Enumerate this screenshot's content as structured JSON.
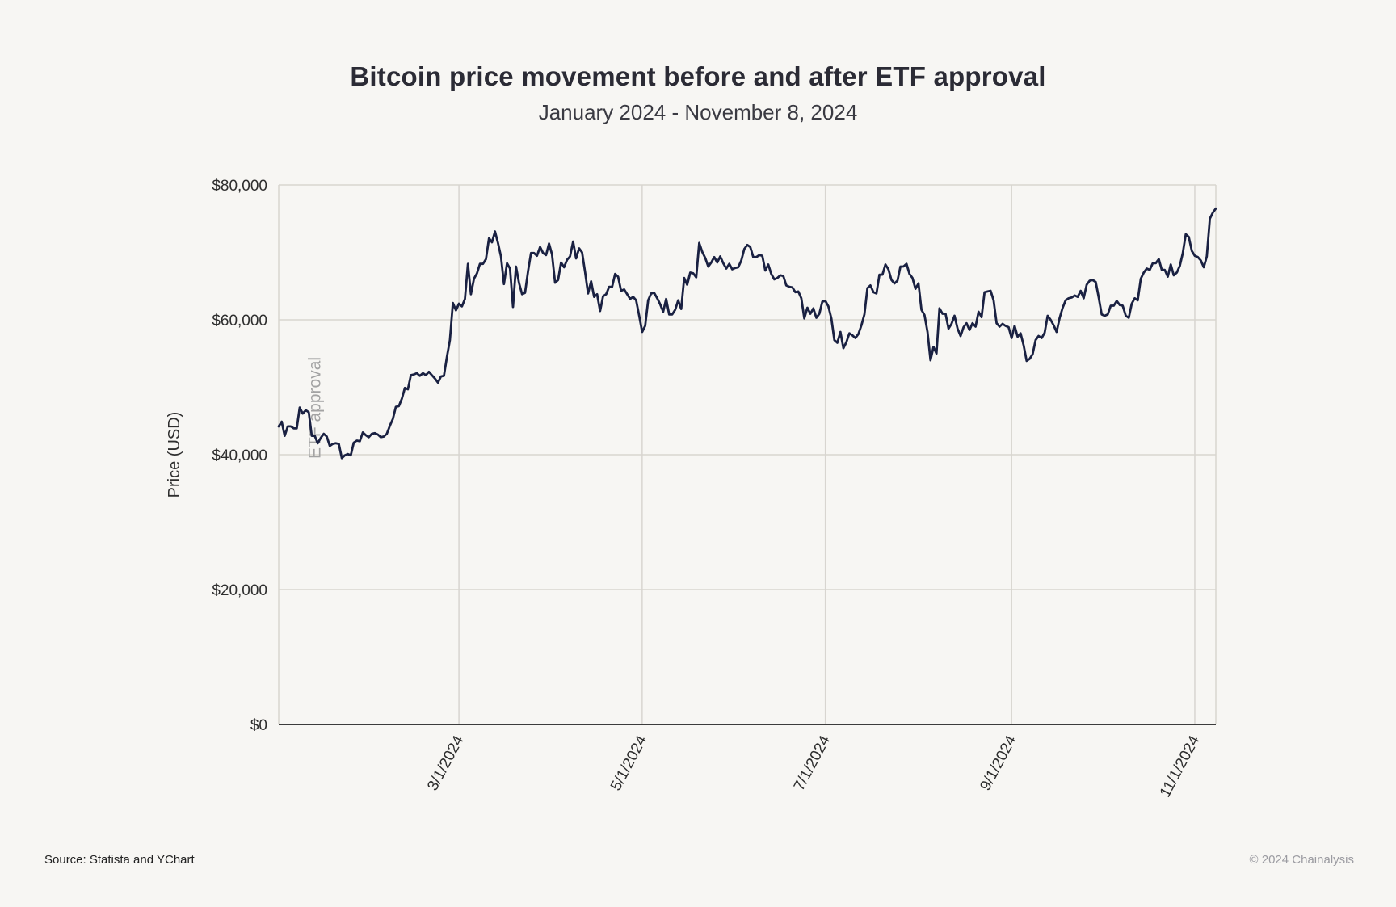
{
  "page": {
    "title": "Bitcoin price movement before and after ETF approval",
    "subtitle": "January 2024 - November 8, 2024",
    "source": "Source: Statista and YChart",
    "copyright": "© 2024 Chainalysis"
  },
  "colors": {
    "background": "#f7f6f3",
    "line": "#1a2142",
    "grid": "#d8d5d0",
    "axis": "#3c3c3c",
    "tick_text": "#2e2e2e",
    "annotation_text": "#a3a3a3"
  },
  "chart_data": {
    "type": "line",
    "title": "Bitcoin price movement before and after ETF approval",
    "subtitle": "January 2024 - November 8, 2024",
    "xlabel": "",
    "ylabel": "Price (USD)",
    "ylim": [
      0,
      80000
    ],
    "y_ticks": [
      0,
      20000,
      40000,
      60000,
      80000
    ],
    "y_tick_prefix": "$",
    "grid": true,
    "legend": false,
    "start_date": "2024-01-01",
    "end_date": "2024-11-08",
    "frequency": "daily",
    "x_ticks": [
      {
        "label": "3/1/2024",
        "day_index": 60
      },
      {
        "label": "5/1/2024",
        "day_index": 121
      },
      {
        "label": "7/1/2024",
        "day_index": 182
      },
      {
        "label": "9/1/2024",
        "day_index": 244
      },
      {
        "label": "11/1/2024",
        "day_index": 305
      }
    ],
    "annotation": {
      "text": "ETF approval",
      "date": "2024-01-10",
      "day_index": 9
    },
    "series": [
      {
        "name": "Bitcoin price (USD)",
        "values": [
          44200,
          44900,
          42800,
          44200,
          44200,
          43900,
          43900,
          47000,
          46100,
          46600,
          46300,
          42800,
          42800,
          41700,
          42500,
          43100,
          42700,
          41300,
          41600,
          41700,
          41600,
          39500,
          39900,
          40100,
          39900,
          41800,
          42100,
          42000,
          43300,
          42900,
          42600,
          43100,
          43200,
          43000,
          42600,
          42700,
          43100,
          44300,
          45300,
          47100,
          47200,
          48300,
          49900,
          49700,
          51800,
          51900,
          52100,
          51700,
          52100,
          51800,
          52300,
          51800,
          51300,
          50700,
          51600,
          51700,
          54500,
          57000,
          62500,
          61400,
          62400,
          62000,
          63100,
          68300,
          63800,
          66100,
          66900,
          68300,
          68300,
          69000,
          72100,
          71500,
          73100,
          71400,
          69400,
          65300,
          68400,
          67600,
          61900,
          67900,
          65500,
          63800,
          64000,
          67200,
          69900,
          69900,
          69500,
          70800,
          69900,
          69600,
          71300,
          69700,
          65500,
          65900,
          68500,
          67800,
          68900,
          69400,
          71600,
          69100,
          70600,
          70000,
          67100,
          63900,
          65700,
          63400,
          63800,
          61300,
          63500,
          63800,
          64900,
          64900,
          66800,
          66400,
          64300,
          64500,
          63800,
          63100,
          63400,
          62900,
          60600,
          58200,
          59100,
          62900,
          63900,
          64000,
          63200,
          62300,
          61200,
          63100,
          60800,
          60800,
          61500,
          62900,
          61600,
          66200,
          65200,
          67000,
          66900,
          66300,
          71400,
          70100,
          69200,
          67900,
          68500,
          69300,
          68500,
          69400,
          68400,
          67600,
          68300,
          67500,
          67700,
          67800,
          68800,
          70500,
          71100,
          70800,
          69300,
          69300,
          69600,
          69500,
          67300,
          68200,
          66800,
          66000,
          66200,
          66600,
          66500,
          65100,
          64900,
          64800,
          64100,
          64200,
          63200,
          60200,
          61800,
          60900,
          61700,
          60300,
          60900,
          62700,
          62800,
          62000,
          60200,
          57000,
          56600,
          58200,
          55800,
          56700,
          58000,
          57700,
          57300,
          57900,
          59200,
          60800,
          64700,
          65100,
          64100,
          63900,
          66700,
          66700,
          68200,
          67500,
          65900,
          65400,
          65800,
          67900,
          67900,
          68300,
          66800,
          66200,
          64600,
          65400,
          61500,
          60700,
          58200,
          54000,
          56000,
          55000,
          61700,
          60900,
          60900,
          58700,
          59400,
          60600,
          58700,
          57600,
          58900,
          59500,
          58500,
          59500,
          59000,
          61200,
          60400,
          64100,
          64200,
          64300,
          62900,
          59500,
          59000,
          59400,
          59100,
          58900,
          57300,
          59100,
          57500,
          58000,
          56200,
          53900,
          54200,
          54900,
          57000,
          57600,
          57300,
          58100,
          60600,
          60000,
          59200,
          58200,
          60300,
          61800,
          62900,
          63200,
          63300,
          63600,
          63400,
          64300,
          63200,
          65200,
          65800,
          65900,
          65600,
          63300,
          60800,
          60600,
          60800,
          62100,
          62100,
          62800,
          62200,
          62100,
          60600,
          60300,
          62400,
          63200,
          62900,
          66100,
          67000,
          67600,
          67400,
          68400,
          68400,
          69000,
          67400,
          67400,
          66400,
          68200,
          66600,
          67000,
          68000,
          69900,
          72700,
          72300,
          70200,
          69500,
          69300,
          68800,
          67800,
          69400,
          75000,
          75900,
          76500
        ]
      }
    ]
  }
}
